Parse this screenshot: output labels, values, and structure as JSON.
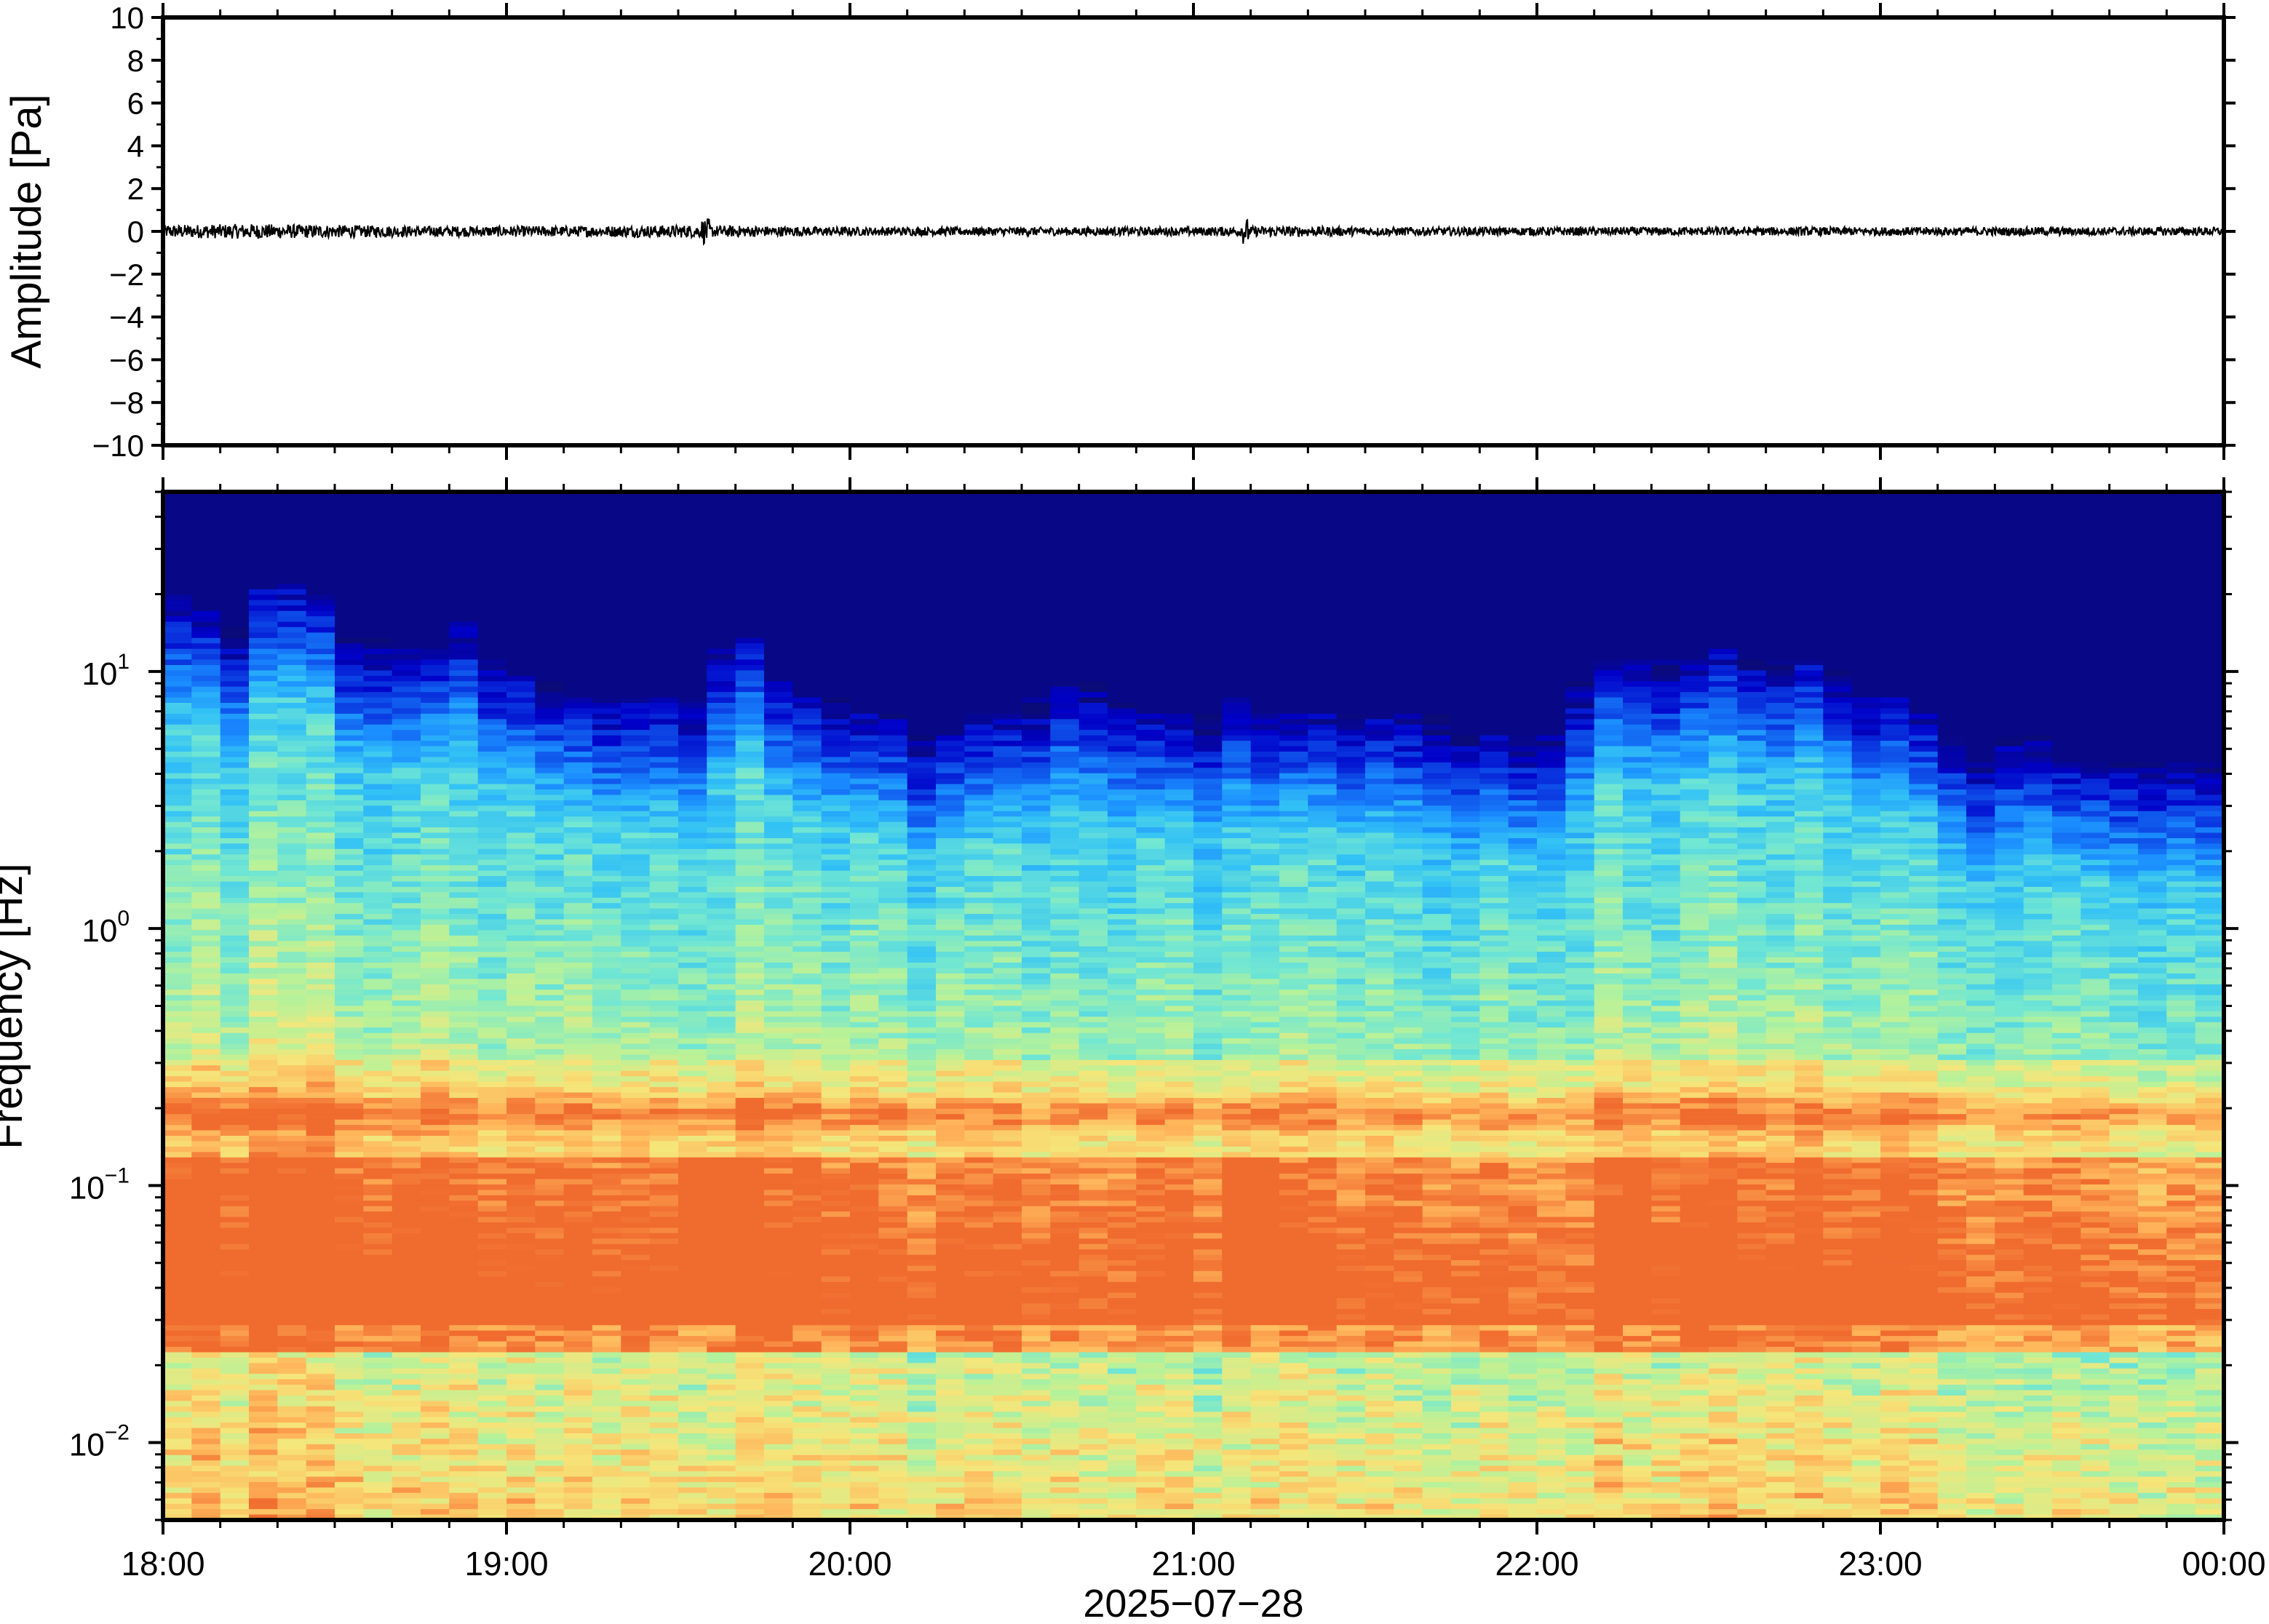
{
  "chart_data": [
    {
      "type": "line",
      "panel": "waveform",
      "ylabel": "Amplitude [Pa]",
      "ylim": [
        -10,
        10
      ],
      "yticks": [
        10,
        8,
        6,
        4,
        2,
        0,
        -2,
        -4,
        -6,
        -8,
        -10
      ],
      "ytick_labels": [
        "10",
        "8",
        "6",
        "4",
        "2",
        "0",
        "−2",
        "−4",
        "−6",
        "−8",
        "−10"
      ],
      "x_range": [
        "18:00",
        "00:00"
      ],
      "series": [
        {
          "hours_after_start": [
            0,
            0.25,
            0.5,
            0.75,
            1,
            1.25,
            1.5,
            1.75,
            2,
            2.25,
            2.5,
            2.75,
            3,
            3.25,
            3.5,
            3.75,
            4,
            4.25,
            4.5,
            4.75,
            5,
            5.25,
            5.5,
            5.75,
            6
          ],
          "envelope_pa": [
            0.3,
            0.35,
            0.3,
            0.25,
            0.25,
            0.25,
            0.3,
            0.25,
            0.2,
            0.2,
            0.2,
            0.2,
            0.2,
            0.25,
            0.2,
            0.2,
            0.2,
            0.2,
            0.2,
            0.2,
            0.2,
            0.2,
            0.2,
            0.2,
            0.2
          ],
          "spikes": [
            {
              "hours_after_start": 1.58,
              "amplitude_pa": 0.6
            },
            {
              "hours_after_start": 3.15,
              "amplitude_pa": 0.6
            }
          ],
          "color": "#000000"
        }
      ],
      "grid": false
    },
    {
      "type": "heatmap",
      "panel": "spectrogram",
      "ylabel": "Frequency [Hz]",
      "yscale": "log",
      "ylim": [
        0.005,
        50
      ],
      "yticks": [
        0.01,
        0.1,
        1,
        10
      ],
      "ytick_labels": [
        {
          "base": "10",
          "exp": "−2"
        },
        {
          "base": "10",
          "exp": "−1"
        },
        {
          "base": "10",
          "exp": "0"
        },
        {
          "base": "10",
          "exp": "1"
        }
      ],
      "xlabel": "2025−07−28",
      "xticks": [
        "18:00",
        "19:00",
        "20:00",
        "21:00",
        "22:00",
        "23:00",
        "00:00"
      ],
      "time_bins": 72,
      "colormap": "jet",
      "colormap_stops": [
        "#0a0a78",
        "#0000c8",
        "#0d47e6",
        "#1a8cff",
        "#33c2f5",
        "#6fe6d4",
        "#b6f29a",
        "#f5e67a",
        "#ffb45a",
        "#f06a2e"
      ],
      "upper_cutoff_hz_per_bin": [
        18,
        15,
        13,
        19,
        21,
        18,
        12,
        12,
        11,
        11,
        14,
        10,
        9,
        8,
        7,
        7,
        7,
        7,
        7,
        11,
        12,
        8,
        7,
        7,
        6,
        6,
        5,
        5,
        6,
        6,
        7,
        8,
        8,
        7,
        6,
        6,
        6,
        7,
        6,
        6,
        6,
        6,
        6,
        6,
        6,
        5,
        5,
        5,
        5,
        8,
        10,
        10,
        10,
        10,
        11,
        10,
        10,
        10,
        9,
        7,
        7,
        6,
        5,
        4,
        5,
        5,
        4,
        4,
        4,
        4,
        4,
        4
      ],
      "peak_band_hz": 0.19,
      "broadband_bursts_hours": [
        1.58,
        1.66,
        3.15,
        4.3
      ]
    }
  ]
}
